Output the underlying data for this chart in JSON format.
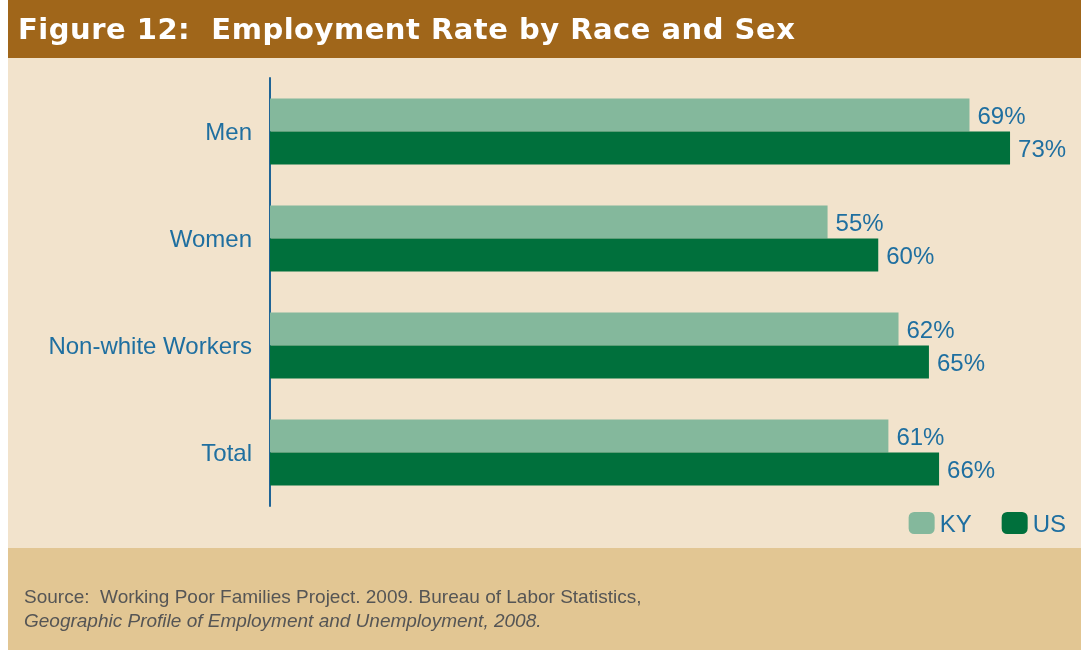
{
  "chart_data": {
    "type": "bar",
    "orientation": "horizontal",
    "title": "Figure 12:  Employment Rate by Race and Sex",
    "categories": [
      "Men",
      "Women",
      "Non-white Workers",
      "Total"
    ],
    "series": [
      {
        "name": "KY",
        "color": "#84b89c",
        "values": [
          69,
          55,
          62,
          61
        ],
        "value_labels": [
          "69%",
          "55%",
          "62%",
          "61%"
        ]
      },
      {
        "name": "US",
        "color": "#00703c",
        "values": [
          73,
          60,
          65,
          66
        ],
        "value_labels": [
          "73%",
          "60%",
          "65%",
          "66%"
        ]
      }
    ],
    "legend": "bottom right",
    "tick_labels": "y",
    "annotations": [
      "Source:  Working Poor Families Project. 2009. Bureau of Labor Statistics,",
      "Geographic Profile of Employment and Unemployment, 2008."
    ]
  }
}
